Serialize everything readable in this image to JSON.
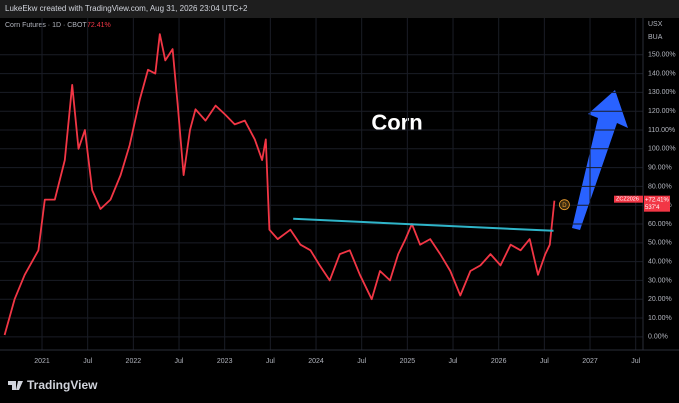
{
  "chart_data": {
    "type": "line",
    "header": "LukeEkw created with TradingView.com, Aug 31, 2026 23:04 UTC+2",
    "legend_title": "Corn Futures · 1D · CBOT",
    "legend_change": "72.41%",
    "annotation": "Corn",
    "currency": "USX",
    "unit_label": "BUA",
    "symbol": "ZCZ2026",
    "change_label": "+72.41%",
    "price_label": "537'4",
    "badge": "D",
    "brand": "TradingView",
    "grid": true,
    "x": [
      2020.59,
      2020.7,
      2020.81,
      2020.96,
      2021.03,
      2021.14,
      2021.25,
      2021.33,
      2021.4,
      2021.47,
      2021.55,
      2021.64,
      2021.75,
      2021.86,
      2021.96,
      2022.07,
      2022.16,
      2022.24,
      2022.29,
      2022.35,
      2022.43,
      2022.49,
      2022.55,
      2022.62,
      2022.68,
      2022.79,
      2022.9,
      2023.01,
      2023.11,
      2023.22,
      2023.33,
      2023.41,
      2023.45,
      2023.49,
      2023.58,
      2023.72,
      2023.83,
      2023.94,
      2024.04,
      2024.15,
      2024.26,
      2024.37,
      2024.48,
      2024.61,
      2024.7,
      2024.81,
      2024.9,
      2024.98,
      2025.05,
      2025.14,
      2025.25,
      2025.36,
      2025.47,
      2025.58,
      2025.69,
      2025.8,
      2025.91,
      2026.02,
      2026.13,
      2026.24,
      2026.34,
      2026.43,
      2026.51,
      2026.56,
      2026.61
    ],
    "series": [
      {
        "name": "Corn Futures",
        "color": "#f23645",
        "values": [
          1,
          20,
          33,
          46,
          73,
          73,
          94,
          134,
          100,
          110,
          78,
          68,
          73,
          86,
          102,
          126,
          142,
          140,
          161,
          147,
          153,
          121,
          86,
          110,
          121,
          115,
          123,
          118,
          113,
          115,
          105,
          94,
          105,
          57,
          52,
          57,
          49,
          46,
          38,
          30,
          44,
          46,
          33,
          20,
          35,
          30,
          44,
          52,
          60,
          49,
          52,
          44,
          35,
          22,
          35,
          38,
          44,
          38,
          49,
          46,
          52,
          33,
          44,
          49,
          72.41
        ]
      }
    ],
    "trend_line": {
      "color": "#2fb5c9",
      "x": [
        2023.75,
        2026.6
      ],
      "values": [
        62.8,
        56.4
      ]
    },
    "xlim": [
      2020.54,
      2027.58
    ],
    "xticks": [
      {
        "value": 2021,
        "label": "2021"
      },
      {
        "value": 2021.5,
        "label": "Jul"
      },
      {
        "value": 2022,
        "label": "2022"
      },
      {
        "value": 2022.5,
        "label": "Jul"
      },
      {
        "value": 2023,
        "label": "2023"
      },
      {
        "value": 2023.5,
        "label": "Jul"
      },
      {
        "value": 2024,
        "label": "2024"
      },
      {
        "value": 2024.5,
        "label": "Jul"
      },
      {
        "value": 2025,
        "label": "2025"
      },
      {
        "value": 2025.5,
        "label": "Jul"
      },
      {
        "value": 2026,
        "label": "2026"
      },
      {
        "value": 2026.5,
        "label": "Jul"
      },
      {
        "value": 2027,
        "label": "2027"
      },
      {
        "value": 2027.5,
        "label": "Jul"
      }
    ],
    "ylim": [
      -7,
      168.5
    ],
    "yticks": [
      {
        "value": 0,
        "label": "0.00%"
      },
      {
        "value": 10,
        "label": "10.00%"
      },
      {
        "value": 20,
        "label": "20.00%"
      },
      {
        "value": 30,
        "label": "30.00%"
      },
      {
        "value": 40,
        "label": "40.00%"
      },
      {
        "value": 50,
        "label": "50.00%"
      },
      {
        "value": 60,
        "label": "60.00%"
      },
      {
        "value": 70,
        "label": "70.00%"
      },
      {
        "value": 80,
        "label": "80.00%"
      },
      {
        "value": 90,
        "label": "90.00%"
      },
      {
        "value": 100,
        "label": "100.00%"
      },
      {
        "value": 110,
        "label": "110.00%"
      },
      {
        "value": 120,
        "label": "120.00%"
      },
      {
        "value": 130,
        "label": "130.00%"
      },
      {
        "value": 140,
        "label": "140.00%"
      },
      {
        "value": 150,
        "label": "150.00%"
      }
    ]
  }
}
